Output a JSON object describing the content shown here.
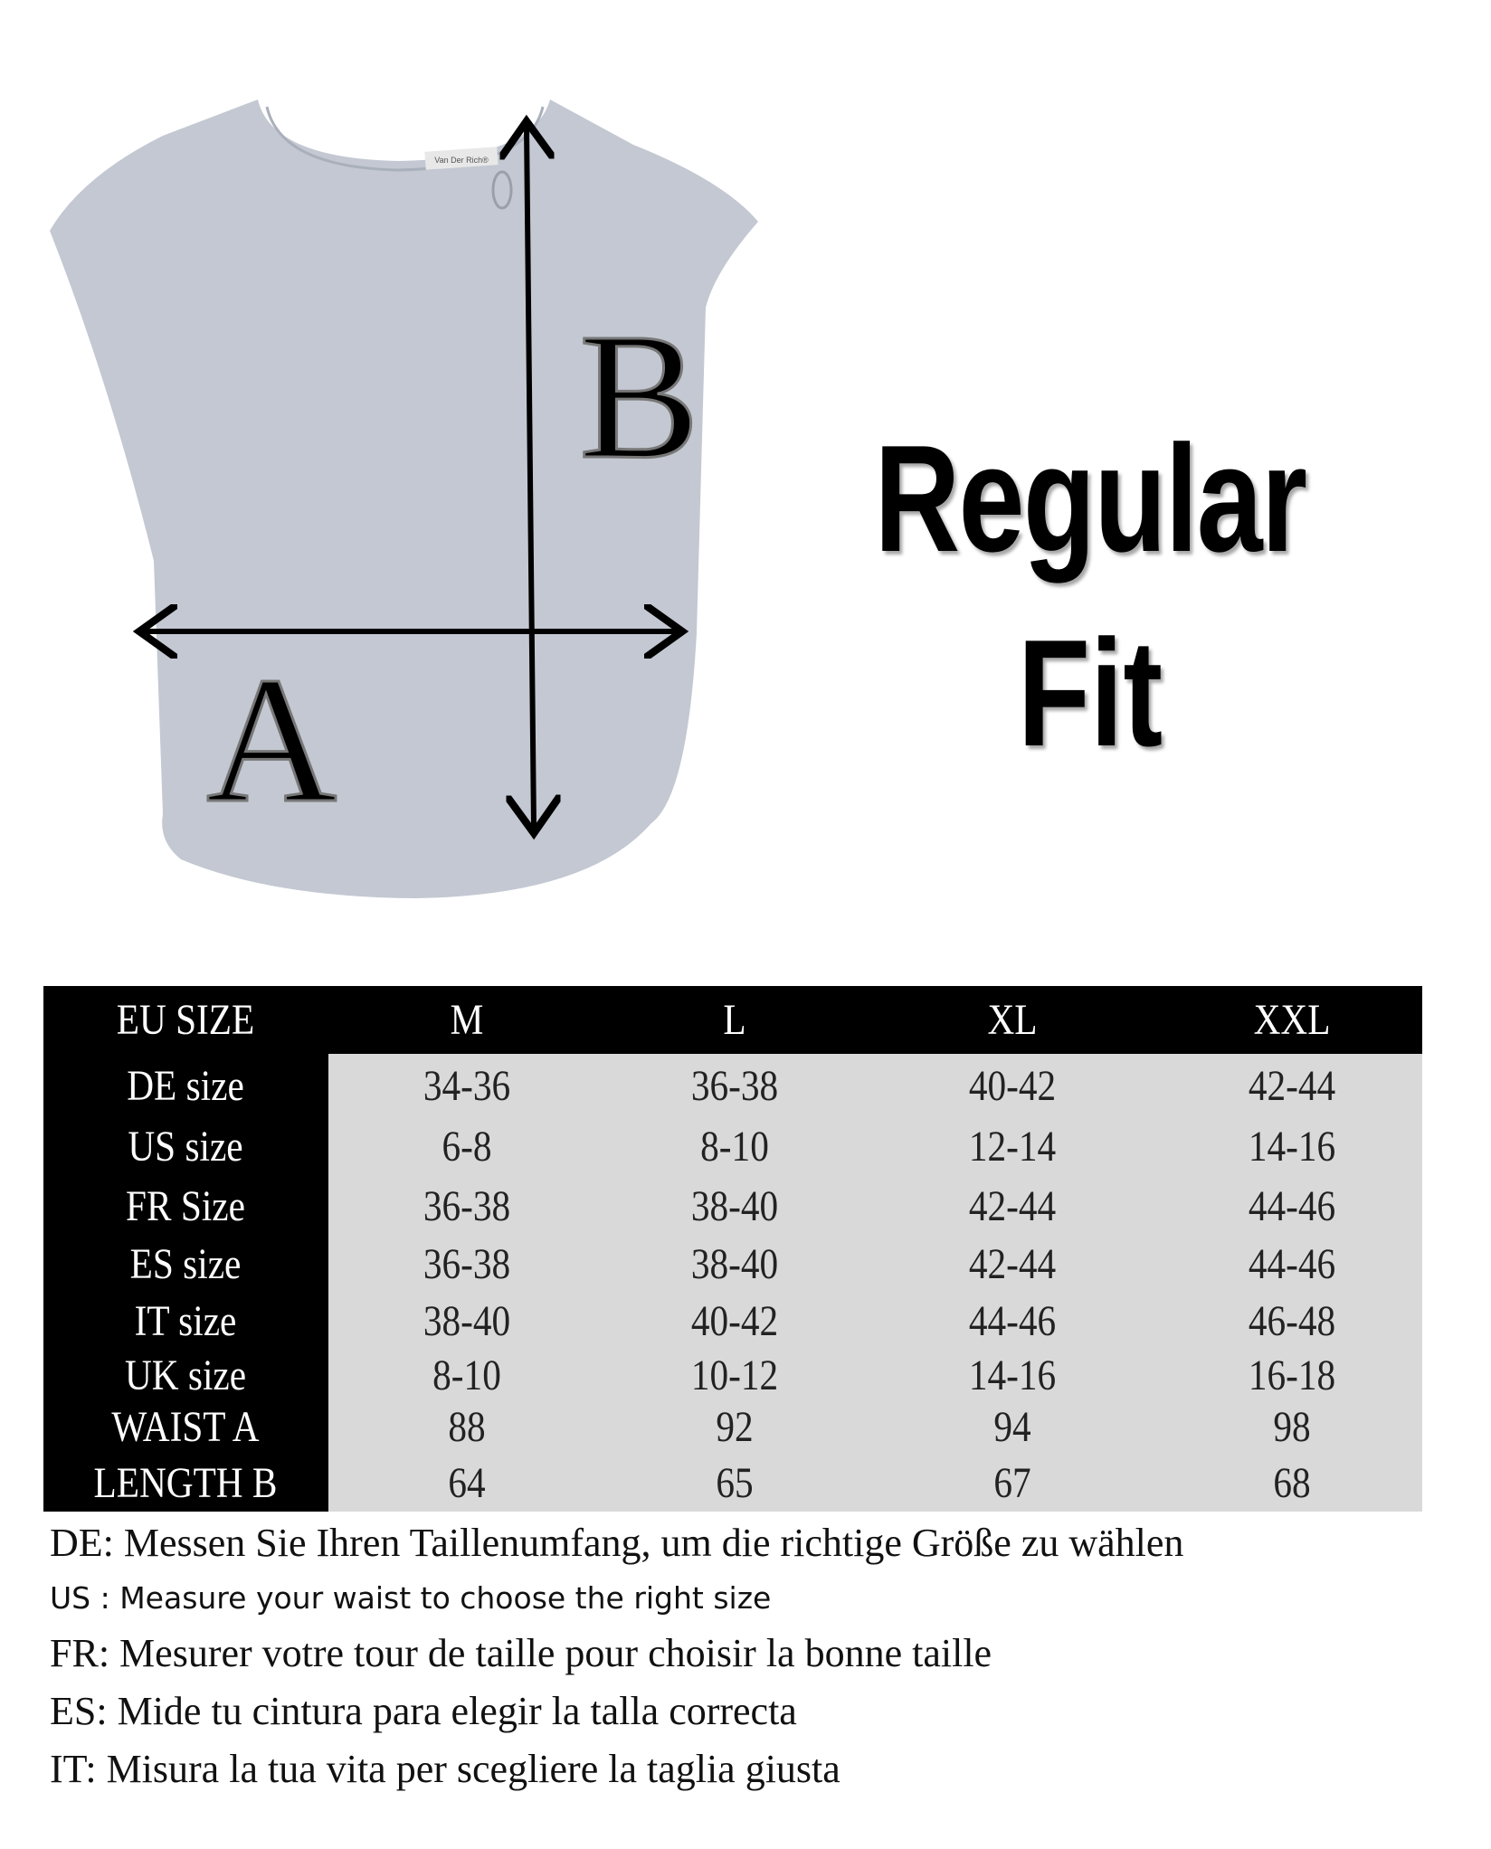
{
  "diagram": {
    "label_a": "A",
    "label_b": "B",
    "brand_tag": "Van Der Rich®",
    "garment_color": "#c3c8d2"
  },
  "fit": {
    "line1": "Regular",
    "line2": "Fit"
  },
  "size_table": {
    "header": [
      "EU SIZE",
      "M",
      "L",
      "XL",
      "XXL"
    ],
    "rows": [
      {
        "label": "DE size",
        "values": [
          "34-36",
          "36-38",
          "40-42",
          "42-44"
        ]
      },
      {
        "label": "US size",
        "values": [
          "6-8",
          "8-10",
          "12-14",
          "14-16"
        ]
      },
      {
        "label": "FR Size",
        "values": [
          "36-38",
          "38-40",
          "42-44",
          "44-46"
        ]
      },
      {
        "label": "ES size",
        "values": [
          "36-38",
          "38-40",
          "42-44",
          "44-46"
        ]
      },
      {
        "label": "IT size",
        "values": [
          "38-40",
          "40-42",
          "44-46",
          "46-48"
        ]
      },
      {
        "label": "UK size",
        "values": [
          "8-10",
          "10-12",
          "14-16",
          "16-18"
        ]
      },
      {
        "label": "WAIST A",
        "values": [
          "88",
          "92",
          "94",
          "98"
        ]
      },
      {
        "label": "LENGTH B",
        "values": [
          "64",
          "65",
          "67",
          "68"
        ]
      }
    ],
    "colors": {
      "header_bg": "#000000",
      "body_bg": "#d9d9d9"
    }
  },
  "notes": [
    "DE: Messen Sie Ihren Taillenumfang, um die richtige Größe zu wählen",
    "US : Measure your waist to choose the right size",
    "FR: Mesurer votre tour de taille pour choisir la bonne taille",
    "ES: Mide tu cintura para elegir la talla correcta",
    "IT: Misura la tua vita per scegliere la taglia giusta"
  ]
}
